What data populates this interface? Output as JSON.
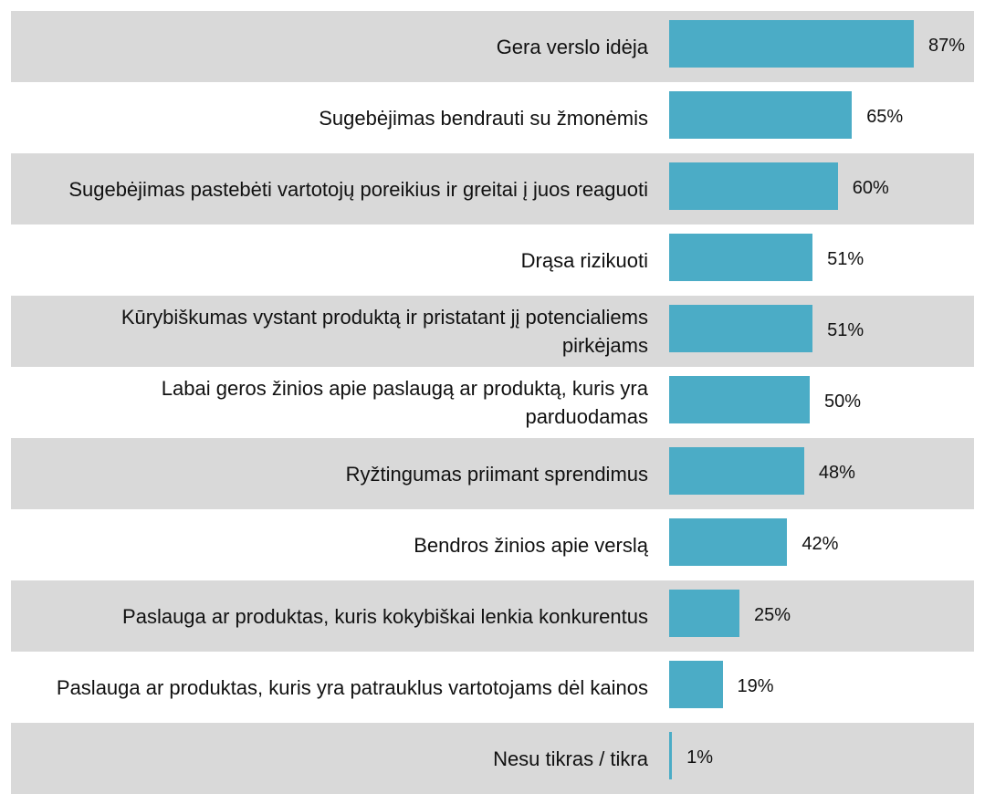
{
  "chart_data": {
    "type": "barh",
    "color": "#4bacc6",
    "categories": [
      "Gera verslo idėja",
      "Sugebėjimas bendrauti su žmonėmis",
      "Sugebėjimas pastebėti vartotojų poreikius ir greitai į juos reaguoti",
      "Drąsa rizikuoti",
      "Kūrybiškumas vystant produktą ir pristatant jį potencialiems pirkėjams",
      "Labai geros žinios apie paslaugą ar produktą, kuris yra parduodamas",
      "Ryžtingumas priimant sprendimus",
      "Bendros žinios apie verslą",
      "Paslauga ar produktas, kuris kokybiškai lenkia konkurentus",
      "Paslauga ar produktas, kuris yra patrauklus vartotojams dėl kainos",
      "Nesu tikras / tikra"
    ],
    "values": [
      87,
      65,
      60,
      51,
      51,
      50,
      48,
      42,
      25,
      19,
      1
    ],
    "value_labels": [
      "87%",
      "65%",
      "60%",
      "51%",
      "51%",
      "50%",
      "48%",
      "42%",
      "25%",
      "19%",
      "1%"
    ]
  }
}
